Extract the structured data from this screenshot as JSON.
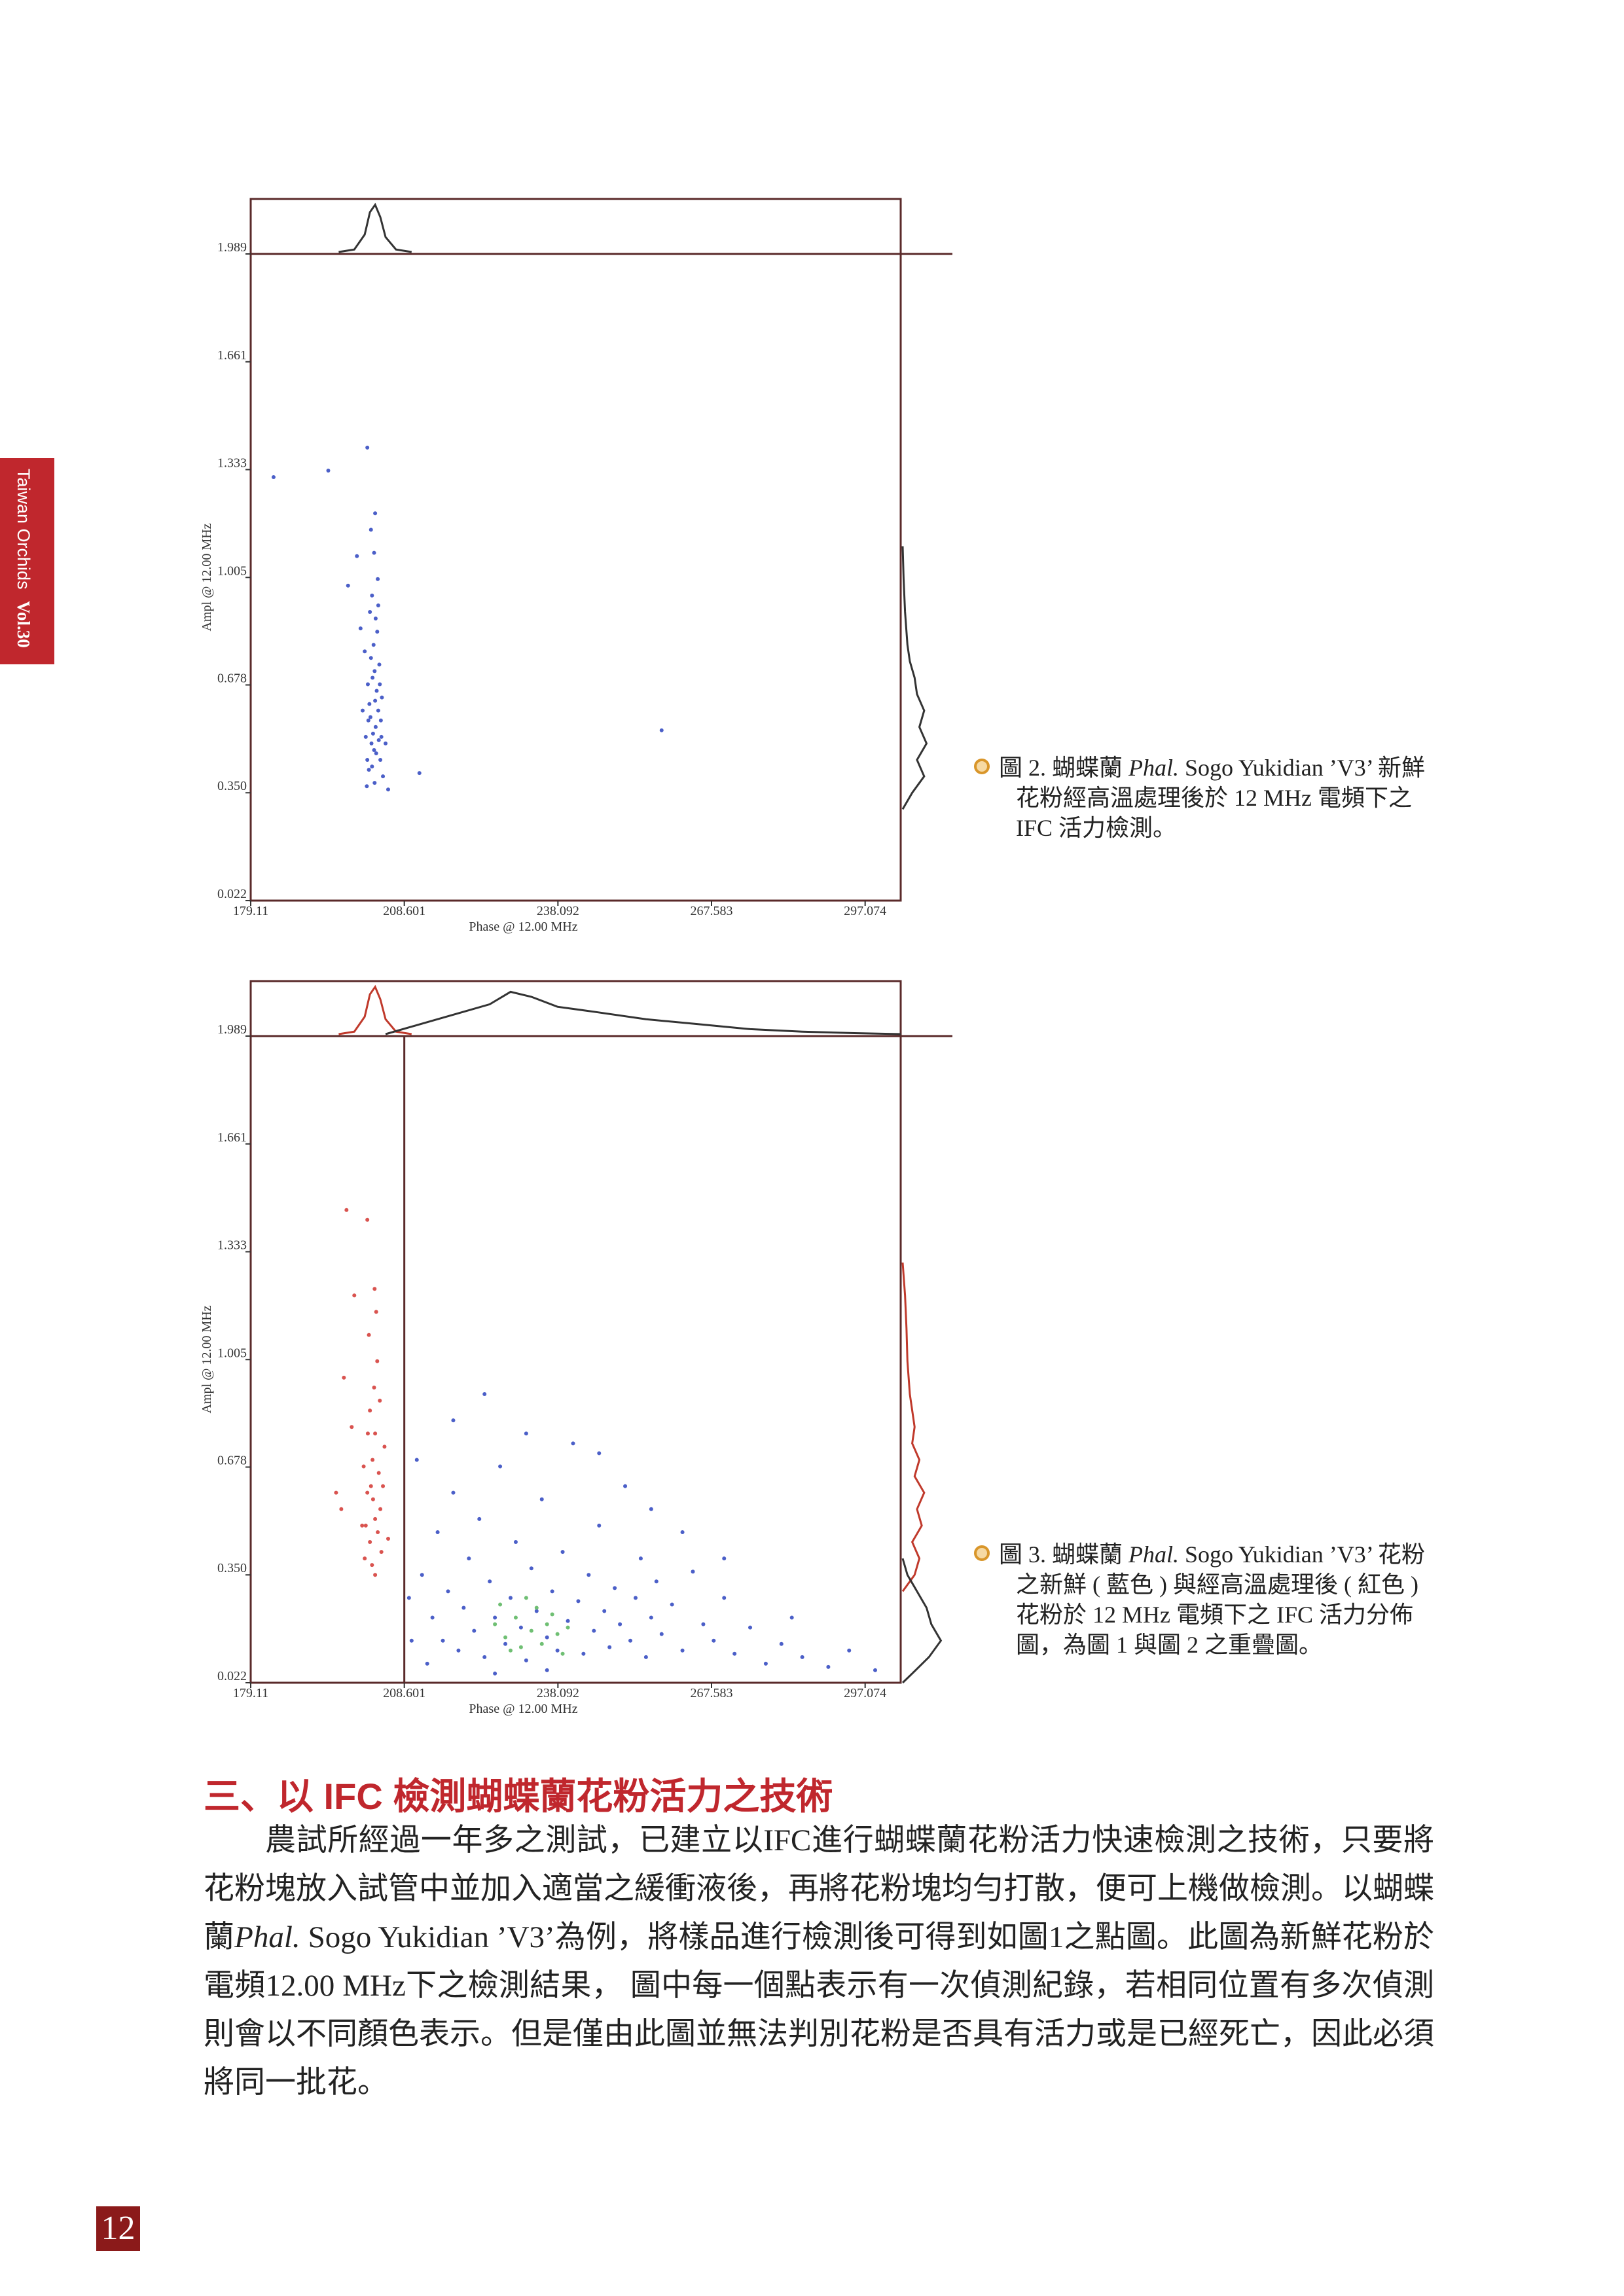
{
  "side_tab": {
    "text": "Taiwan Orchids",
    "volume": "Vol.30"
  },
  "chart_data": [
    {
      "type": "scatter",
      "x_label": "Phase @ 12.00 MHz",
      "y_label": "Ampl @ 12.00 MHz",
      "xlim": [
        179.11,
        303.9
      ],
      "ylim": [
        0.022,
        1.989
      ],
      "xticks": [
        179.11,
        208.601,
        238.092,
        267.583,
        297.074
      ],
      "yticks": [
        0.022,
        {
          "value": 0.35,
          "label": "0.350"
        },
        0.678,
        1.005,
        1.333,
        1.661,
        1.989
      ],
      "series": [
        {
          "color": "#4b5fc8",
          "x": [
            201.5,
            202.3,
            203.1,
            202.8,
            203.6,
            201.9,
            204.2,
            202.5,
            203.3,
            202.1,
            204.0,
            201.2,
            203.8,
            202.7,
            203.1,
            202.4,
            203.5,
            201.8,
            204.5,
            202.9,
            201.4,
            203.9,
            202.2,
            203.0,
            202.6,
            204.1,
            201.6,
            203.4,
            202.0,
            204.3,
            202.8,
            201.0,
            203.2,
            202.4,
            203.7,
            201.7,
            205.0,
            202.9,
            200.6,
            203.6,
            202.2,
            203.0,
            194.0,
            201.5,
            258.0,
            183.5,
            199.5,
            197.8,
            211.5,
            205.5,
            200.2
          ],
          "values": [
            0.45,
            0.5,
            0.55,
            0.48,
            0.6,
            0.62,
            0.52,
            0.7,
            0.66,
            0.58,
            0.45,
            0.52,
            0.74,
            0.8,
            0.88,
            0.95,
            1.0,
            0.42,
            0.4,
            0.38,
            0.37,
            0.68,
            0.76,
            0.63,
            0.53,
            0.57,
            0.68,
            0.84,
            0.9,
            0.64,
            1.08,
            0.78,
            0.47,
            0.43,
            0.51,
            0.57,
            0.5,
            0.72,
            0.6,
            0.92,
            1.15,
            1.2,
            1.33,
            1.4,
            0.54,
            1.31,
            1.07,
            0.98,
            0.41,
            0.36,
            0.85
          ]
        }
      ],
      "x_profiles": [
        {
          "color": "#333333",
          "x": [
            196,
            199,
            201,
            202,
            203,
            204,
            205,
            207,
            210
          ],
          "values": [
            0,
            0.05,
            0.35,
            0.8,
            0.95,
            0.7,
            0.3,
            0.05,
            0
          ]
        }
      ],
      "y_profiles": [
        {
          "color": "#333333",
          "y": [
            0.3,
            0.35,
            0.4,
            0.45,
            0.5,
            0.55,
            0.6,
            0.65,
            0.7,
            0.75,
            0.8,
            0.9,
            1.0,
            1.1
          ],
          "values": [
            0,
            0.2,
            0.45,
            0.3,
            0.5,
            0.35,
            0.45,
            0.3,
            0.25,
            0.15,
            0.1,
            0.05,
            0.02,
            0
          ]
        }
      ],
      "caption": {
        "label": "圖 2.",
        "before": "蝴蝶蘭",
        "italic": "Phal.",
        "after": "Sogo Yukidian ’V3’ 新鮮花粉經高溫處理後於 12 MHz 電頻下之 IFC 活力檢測。"
      }
    },
    {
      "type": "scatter",
      "x_label": "Phase @ 12.00 MHz",
      "y_label": "Ampl @ 12.00 MHz",
      "xlim": [
        179.11,
        303.9
      ],
      "ylim": [
        0.022,
        1.989
      ],
      "xticks": [
        179.11,
        208.601,
        238.092,
        267.583,
        297.074
      ],
      "yticks": [
        0.022,
        {
          "value": 0.35,
          "label": "0.350"
        },
        0.678,
        1.005,
        1.333,
        1.661,
        1.989
      ],
      "gate_x": 208.601,
      "series": [
        {
          "color": "#d9534f",
          "x": [
            202,
            203,
            201.5,
            203.5,
            202.5,
            204,
            201,
            203,
            202,
            204.5,
            202.8,
            203.4,
            201.8,
            203.2,
            202.4,
            204.2,
            201.2,
            203.7,
            202.6,
            204.8,
            200.8,
            203,
            202.2,
            203.9,
            201.6,
            202.9,
            197.5,
            201.5,
            196.5,
            197,
            198.5,
            199,
            195.5,
            205.5,
            200.5
          ],
          "values": [
            0.45,
            0.52,
            0.6,
            0.48,
            0.7,
            0.55,
            0.4,
            0.78,
            0.85,
            0.62,
            0.92,
            1.0,
            1.08,
            1.15,
            0.38,
            0.42,
            0.5,
            0.66,
            0.58,
            0.74,
            0.68,
            0.35,
            0.62,
            0.88,
            0.78,
            1.22,
            1.46,
            1.43,
            0.55,
            0.95,
            0.8,
            1.2,
            0.6,
            0.46,
            0.5
          ]
        },
        {
          "color": "#4b5fc8",
          "x": [
            212,
            214,
            215,
            216,
            217,
            218,
            219,
            220,
            221,
            222,
            223,
            224,
            225,
            226,
            227,
            228,
            229,
            230,
            231,
            232,
            233,
            234,
            235,
            236,
            237,
            238,
            239,
            240,
            241,
            242,
            243,
            244,
            245,
            246,
            247,
            248,
            249,
            250,
            251,
            252,
            253,
            254,
            255,
            256,
            257,
            258,
            260,
            262,
            264,
            266,
            268,
            270,
            272,
            275,
            278,
            281,
            285,
            290,
            294,
            299,
            218,
            224,
            232,
            246,
            256,
            262,
            270,
            211,
            213,
            226,
            236,
            283,
            209.5,
            210
          ],
          "values": [
            0.35,
            0.22,
            0.48,
            0.15,
            0.3,
            0.6,
            0.12,
            0.25,
            0.4,
            0.18,
            0.52,
            0.1,
            0.33,
            0.22,
            0.68,
            0.14,
            0.28,
            0.45,
            0.19,
            0.09,
            0.37,
            0.24,
            0.58,
            0.16,
            0.3,
            0.12,
            0.42,
            0.21,
            0.75,
            0.27,
            0.11,
            0.35,
            0.18,
            0.5,
            0.24,
            0.13,
            0.31,
            0.2,
            0.62,
            0.15,
            0.28,
            0.4,
            0.1,
            0.22,
            0.33,
            0.17,
            0.26,
            0.12,
            0.36,
            0.2,
            0.15,
            0.28,
            0.11,
            0.19,
            0.08,
            0.14,
            0.1,
            0.07,
            0.12,
            0.06,
            0.82,
            0.9,
            0.78,
            0.72,
            0.55,
            0.48,
            0.4,
            0.7,
            0.08,
            0.05,
            0.06,
            0.22,
            0.28,
            0.15
          ]
        },
        {
          "color": "#6fbf73",
          "x": [
            226,
            228,
            230,
            231,
            233,
            234,
            235,
            236,
            238,
            239,
            227,
            232,
            237,
            229,
            240
          ],
          "values": [
            0.2,
            0.16,
            0.22,
            0.13,
            0.18,
            0.25,
            0.14,
            0.2,
            0.17,
            0.11,
            0.26,
            0.28,
            0.23,
            0.12,
            0.19
          ]
        }
      ],
      "x_profiles": [
        {
          "color": "#c0392b",
          "x": [
            196,
            199,
            201,
            202,
            203,
            204,
            205,
            207,
            210
          ],
          "values": [
            0,
            0.05,
            0.35,
            0.8,
            0.95,
            0.7,
            0.3,
            0.05,
            0
          ]
        },
        {
          "color": "#333333",
          "x": [
            205,
            210,
            215,
            220,
            225,
            229,
            233,
            238,
            245,
            255,
            265,
            275,
            285,
            295,
            303.9
          ],
          "values": [
            0,
            0.15,
            0.3,
            0.45,
            0.6,
            0.85,
            0.75,
            0.55,
            0.45,
            0.3,
            0.2,
            0.1,
            0.05,
            0.02,
            0
          ]
        }
      ],
      "y_profiles": [
        {
          "color": "#c0392b",
          "y": [
            0.3,
            0.35,
            0.4,
            0.45,
            0.5,
            0.55,
            0.6,
            0.65,
            0.7,
            0.75,
            0.8,
            0.9,
            1.0,
            1.1,
            1.2,
            1.3
          ],
          "values": [
            0,
            0.25,
            0.35,
            0.2,
            0.4,
            0.3,
            0.45,
            0.25,
            0.35,
            0.2,
            0.25,
            0.15,
            0.1,
            0.08,
            0.05,
            0
          ]
        },
        {
          "color": "#333333",
          "y": [
            0.022,
            0.05,
            0.1,
            0.15,
            0.2,
            0.25,
            0.3,
            0.35,
            0.4
          ],
          "values": [
            0,
            0.2,
            0.55,
            0.8,
            0.6,
            0.5,
            0.3,
            0.1,
            0
          ]
        }
      ],
      "caption": {
        "label": "圖 3.",
        "before": "蝴蝶蘭",
        "italic": "Phal.",
        "after": "Sogo Yukidian ’V3’ 花粉之新鮮 ( 藍色 ) 與經高溫處理後 ( 紅色 ) 花粉於 12 MHz 電頻下之 IFC 活力分佈圖，為圖 1 與圖 2 之重疊圖。"
      }
    }
  ],
  "heading": "三、以 IFC 檢測蝴蝶蘭花粉活力之技術",
  "body": {
    "part1": "農試所經過一年多之測試，已建立以IFC進行蝴蝶蘭花粉活力快速檢測之技術，只要將花粉塊放入試管中並加入適當之緩衝液後，再將花粉塊均勻打散，便可上機做檢測。以蝴蝶蘭",
    "italic": "Phal.",
    "part2": "Sogo Yukidian ’V3’為例，將樣品進行檢測後可得到如圖1之點圖。此圖為新鮮花粉於電頻12.00 MHz下之檢測結果， 圖中每一個點表示有一次偵測紀錄，若相同位置有多次偵測則會以不同顏色表示。但是僅由此圖並無法判別花粉是否具有活力或是已經死亡，因此必須將同一批花。"
  },
  "page_number": "12"
}
